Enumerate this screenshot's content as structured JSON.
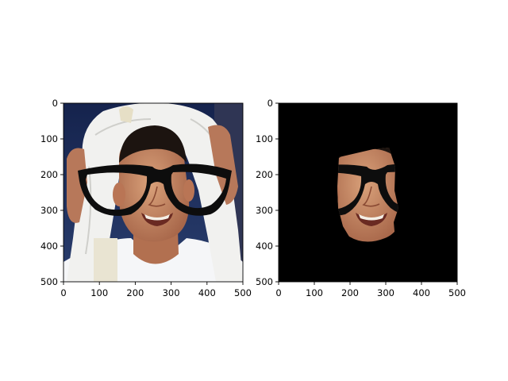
{
  "chart_data": [
    {
      "type": "image",
      "image_content": "photo of a smiling man with a white towel wrapped around his head, wearing overlaid black thick-rimmed glasses",
      "xlim": [
        0,
        500
      ],
      "ylim": [
        500,
        0
      ],
      "x_ticks": [
        0,
        100,
        200,
        300,
        400,
        500
      ],
      "y_ticks": [
        0,
        100,
        200,
        300,
        400,
        500
      ],
      "colors": {
        "sky": "#1a2a55",
        "towel": "#f2f2f0",
        "skin": "#c98f6a",
        "hair": "#1c1410",
        "glasses": "#0d0d0d",
        "shirt": "#f5f6f8"
      }
    },
    {
      "type": "image",
      "image_content": "same image masked to show only the face region (with glasses) on a black background",
      "xlim": [
        0,
        500
      ],
      "ylim": [
        500,
        0
      ],
      "x_ticks": [
        0,
        100,
        200,
        300,
        400,
        500
      ],
      "y_ticks": [
        0,
        100,
        200,
        300,
        400,
        500
      ],
      "colors": {
        "background": "#000000",
        "skin": "#c98f6a",
        "glasses": "#0d0d0d"
      }
    }
  ]
}
